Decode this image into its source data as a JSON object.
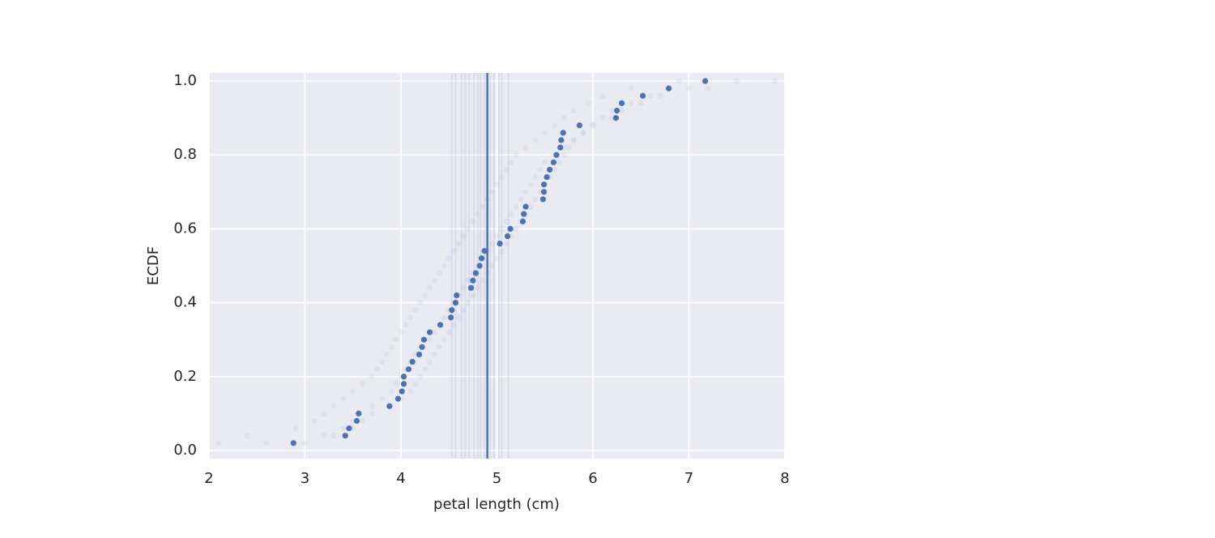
{
  "chart_data": {
    "type": "scatter",
    "xlabel": "petal length (cm)",
    "ylabel": "ECDF",
    "xlim": [
      2,
      8
    ],
    "ylim": [
      -0.022,
      1.022
    ],
    "xticks": [
      2,
      3,
      4,
      5,
      6,
      7,
      8
    ],
    "yticks": [
      {
        "value": 0,
        "label": "0.0"
      },
      0.2,
      0.4,
      0.6,
      0.8,
      {
        "value": 1,
        "label": "1.0"
      }
    ],
    "grid": true,
    "background": "#eaeaf2",
    "color": "#4c72b0",
    "y": [
      0.02,
      0.04,
      0.06,
      0.08,
      0.1,
      0.12,
      0.14,
      0.16,
      0.18,
      0.2,
      0.22,
      0.24,
      0.26,
      0.28,
      0.3,
      0.32,
      0.34,
      0.36,
      0.38,
      0.4,
      0.42,
      0.44,
      0.46,
      0.48,
      0.5,
      0.52,
      0.54,
      0.56,
      0.58,
      0.6,
      0.62,
      0.64,
      0.66,
      0.68,
      0.7,
      0.72,
      0.74,
      0.76,
      0.78,
      0.8,
      0.82,
      0.84,
      0.86,
      0.88,
      0.9,
      0.92,
      0.94,
      0.96,
      0.98,
      1.0
    ],
    "series": [
      {
        "color": "#4c72b0",
        "opacity": 0.07,
        "x": [
          2.1,
          2.4,
          2.9,
          3.1,
          3.2,
          3.3,
          3.4,
          3.5,
          3.6,
          3.7,
          3.75,
          3.8,
          3.85,
          3.9,
          3.95,
          4.0,
          4.05,
          4.1,
          4.15,
          4.2,
          4.25,
          4.3,
          4.35,
          4.4,
          4.45,
          4.5,
          4.55,
          4.6,
          4.65,
          4.7,
          4.75,
          4.8,
          4.85,
          4.9,
          4.95,
          5.0,
          5.05,
          5.1,
          5.15,
          5.2,
          5.3,
          5.4,
          5.5,
          5.6,
          5.7,
          5.8,
          5.95,
          6.1,
          6.4,
          6.9
        ]
      },
      {
        "color": "#4c72b0",
        "opacity": 0.07,
        "x": [
          3.0,
          3.3,
          3.5,
          3.6,
          3.7,
          3.9,
          4.0,
          4.1,
          4.15,
          4.2,
          4.25,
          4.3,
          4.35,
          4.4,
          4.45,
          4.5,
          4.55,
          4.6,
          4.65,
          4.7,
          4.75,
          4.8,
          4.85,
          4.9,
          4.95,
          5.0,
          5.05,
          5.1,
          5.15,
          5.2,
          5.25,
          5.3,
          5.35,
          5.4,
          5.45,
          5.5,
          5.55,
          5.6,
          5.65,
          5.7,
          5.75,
          5.8,
          5.9,
          6.0,
          6.1,
          6.2,
          6.4,
          6.6,
          7.0,
          7.9
        ]
      },
      {
        "color": "#4c72b0",
        "opacity": 0.07,
        "x": [
          2.6,
          3.2,
          3.4,
          3.5,
          3.55,
          3.7,
          3.8,
          3.9,
          3.95,
          4.0,
          4.05,
          4.1,
          4.15,
          4.2,
          4.3,
          4.35,
          4.4,
          4.45,
          4.5,
          4.55,
          4.6,
          4.65,
          4.7,
          4.75,
          4.8,
          4.85,
          4.9,
          4.95,
          5.0,
          5.05,
          5.1,
          5.15,
          5.2,
          5.25,
          5.3,
          5.35,
          5.4,
          5.45,
          5.5,
          5.6,
          5.7,
          5.8,
          5.9,
          6.0,
          6.2,
          6.3,
          6.5,
          6.7,
          7.2,
          7.5
        ]
      },
      {
        "color": "#4c72b0",
        "opacity": 1,
        "x": [
          2.88,
          3.42,
          3.46,
          3.54,
          3.56,
          3.88,
          3.97,
          4.01,
          4.03,
          4.03,
          4.08,
          4.12,
          4.19,
          4.22,
          4.24,
          4.3,
          4.41,
          4.52,
          4.53,
          4.57,
          4.58,
          4.73,
          4.75,
          4.78,
          4.82,
          4.84,
          4.87,
          5.03,
          5.11,
          5.14,
          5.27,
          5.28,
          5.3,
          5.48,
          5.49,
          5.49,
          5.52,
          5.55,
          5.59,
          5.62,
          5.66,
          5.67,
          5.69,
          5.86,
          6.24,
          6.25,
          6.3,
          6.52,
          6.79,
          7.17
        ]
      }
    ],
    "bootstrap_lines": [
      4.53,
      4.57,
      4.63,
      4.67,
      4.71,
      4.76,
      4.8,
      4.83,
      4.87,
      4.93,
      4.97,
      5.02,
      5.05,
      5.12
    ],
    "mean_line": 4.9
  }
}
